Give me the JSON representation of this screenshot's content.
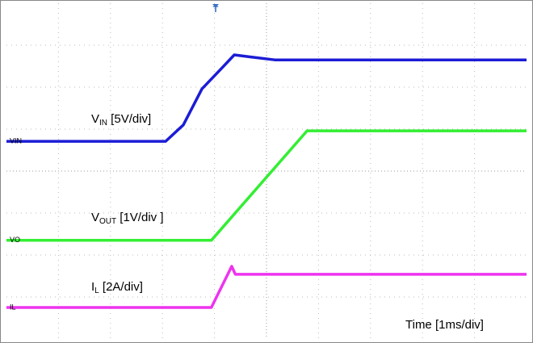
{
  "chart_data": {
    "type": "line",
    "xlim": [
      0,
      10
    ],
    "ylim": [
      0,
      8
    ],
    "grid": true,
    "series": [
      {
        "name": "VIN",
        "color": "#1c1cd6",
        "x": [
          0,
          3.06,
          3.4,
          3.76,
          4.1,
          4.38,
          4.7,
          5.16,
          10
        ],
        "values": [
          4.71,
          4.71,
          5.1,
          5.96,
          6.4,
          6.77,
          6.72,
          6.65,
          6.65
        ]
      },
      {
        "name": "VO",
        "color": "#33ee33",
        "x": [
          0,
          3.94,
          5.78,
          10
        ],
        "values": [
          2.35,
          2.35,
          4.96,
          4.96
        ]
      },
      {
        "name": "IL",
        "color": "#ee33ee",
        "x": [
          0,
          3.94,
          4.33,
          4.4,
          10
        ],
        "values": [
          0.75,
          0.75,
          1.73,
          1.54,
          1.54
        ]
      }
    ],
    "annotations": [
      {
        "text": "V",
        "sub": "IN",
        "rest": " [5V/div]"
      },
      {
        "text": "V",
        "sub": "OUT",
        "rest": " [1V/div ]"
      },
      {
        "text": "I",
        "sub": "L",
        "rest": " [2A/div]"
      }
    ],
    "trigger": "T",
    "time_label": "Time [1ms/div]"
  }
}
